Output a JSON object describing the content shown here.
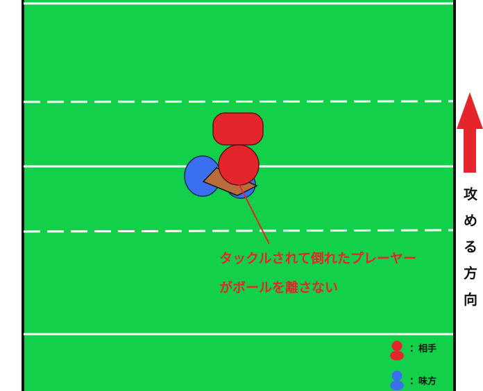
{
  "colors": {
    "field": "#12d04a",
    "line": "#ffffff",
    "border": "#111111",
    "opponent": "#e4252b",
    "teammate": "#3a6ff0",
    "ball": "#b96d3c",
    "annotation": "#e4252b",
    "arrow": "#e4252b"
  },
  "annotation": {
    "line1": "タックルされて倒れたプレーヤー",
    "line2": "がボールを離さない"
  },
  "direction": {
    "chars": [
      "攻",
      "め",
      "る",
      "方",
      "向"
    ],
    "icon": "up-arrow-icon"
  },
  "legend": {
    "opponent_label": "：相手",
    "teammate_label": "：味方"
  }
}
